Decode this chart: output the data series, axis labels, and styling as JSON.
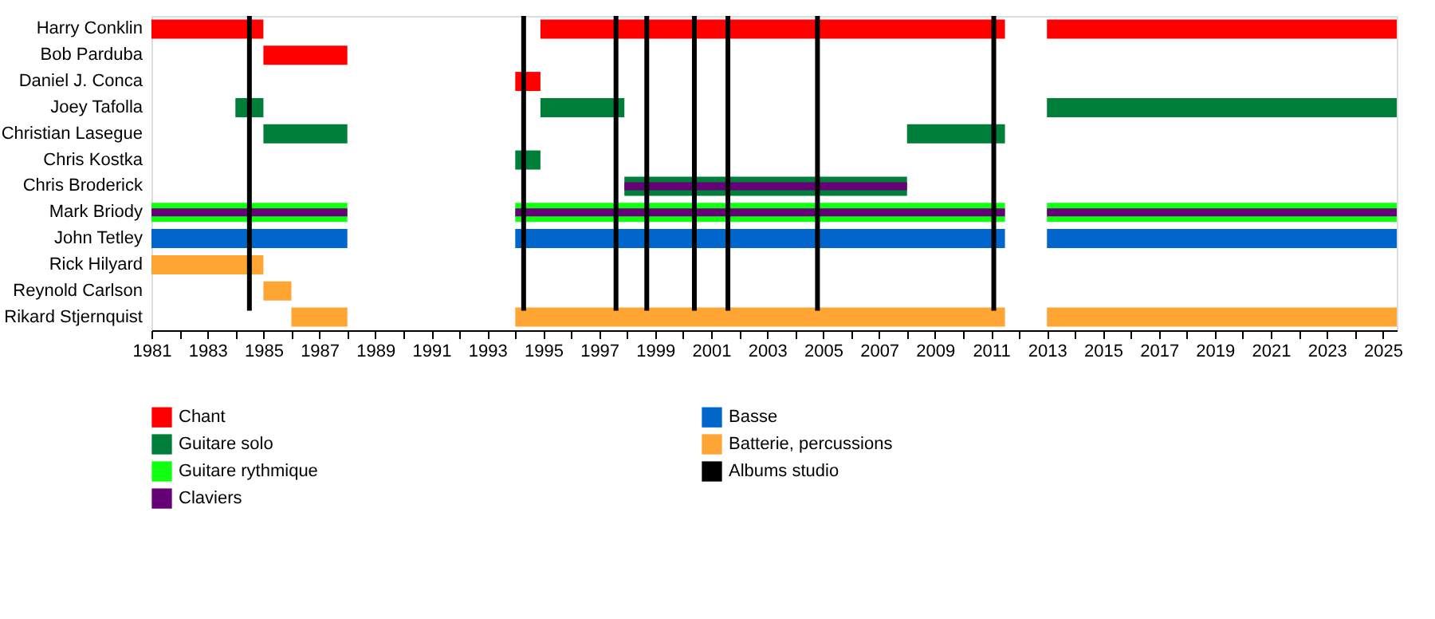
{
  "chart_data": {
    "type": "bar",
    "orientation": "horizontal",
    "categories": [
      "Harry Conklin",
      "Bob Parduba",
      "Daniel J. Conca",
      "Joey Tafolla",
      "Christian Lasegue",
      "Chris Kostka",
      "Chris Broderick",
      "Mark Briody",
      "John Tetley",
      "Rick Hilyard",
      "Reynold Carlson",
      "Rikard Stjernquist"
    ],
    "series": [
      {
        "name": "Chant",
        "color": "#ff0000",
        "base": [
          1981,
          1985,
          null,
          null,
          null,
          null,
          null,
          null,
          null,
          null,
          null,
          null
        ],
        "values": [
          4,
          3,
          null,
          null,
          null,
          null,
          null,
          null,
          null,
          null,
          null,
          null
        ]
      },
      {
        "color": "#ff0000",
        "base": [
          1994.9,
          null,
          1994,
          null,
          null,
          null,
          null,
          null,
          null,
          null,
          null,
          null
        ],
        "values": [
          16.6,
          null,
          0.9,
          null,
          null,
          null,
          null,
          null,
          null,
          null,
          null,
          null
        ]
      },
      {
        "color": "#ff0000",
        "base": [
          2013,
          null,
          null,
          null,
          null,
          null,
          null,
          null,
          null,
          null,
          null,
          null
        ],
        "values": [
          12.5,
          null,
          null,
          null,
          null,
          null,
          null,
          null,
          null,
          null,
          null,
          null
        ]
      },
      {
        "name": "Guitare solo",
        "color": "#007f3a",
        "base": [
          null,
          null,
          null,
          1984,
          1985,
          null,
          null,
          null,
          null,
          null,
          null,
          null
        ],
        "values": [
          null,
          null,
          null,
          1,
          3,
          null,
          null,
          null,
          null,
          null,
          null,
          null
        ]
      },
      {
        "color": "#007f3a",
        "base": [
          null,
          null,
          null,
          1994.9,
          2008,
          1994,
          1997.9,
          null,
          null,
          null,
          null,
          null
        ],
        "values": [
          null,
          null,
          null,
          3,
          3.5,
          0.9,
          10.1,
          null,
          null,
          null,
          null,
          null
        ]
      },
      {
        "color": "#007f3a",
        "base": [
          null,
          null,
          null,
          2013,
          null,
          null,
          null,
          null,
          null,
          null,
          null,
          null
        ],
        "values": [
          null,
          null,
          null,
          12.5,
          null,
          null,
          null,
          null,
          null,
          null,
          null,
          null
        ]
      },
      {
        "name": "Guitare rythmique",
        "color": "#11ff11",
        "base": [
          null,
          null,
          null,
          null,
          null,
          null,
          null,
          1981,
          null,
          null,
          null,
          null
        ],
        "values": [
          null,
          null,
          null,
          null,
          null,
          null,
          null,
          7,
          null,
          null,
          null,
          null
        ]
      },
      {
        "color": "#11ff11",
        "base": [
          null,
          null,
          null,
          null,
          null,
          null,
          null,
          1994,
          null,
          null,
          null,
          null
        ],
        "values": [
          null,
          null,
          null,
          null,
          null,
          null,
          null,
          17.5,
          null,
          null,
          null,
          null
        ]
      },
      {
        "color": "#11ff11",
        "base": [
          null,
          null,
          null,
          null,
          null,
          null,
          null,
          2013,
          null,
          null,
          null,
          null
        ],
        "values": [
          null,
          null,
          null,
          null,
          null,
          null,
          null,
          12.5,
          null,
          null,
          null,
          null
        ]
      },
      {
        "name": "Claviers",
        "color": "#660077",
        "base": [
          null,
          null,
          null,
          null,
          null,
          null,
          1997.9,
          1981,
          null,
          null,
          null,
          null
        ],
        "values": [
          null,
          null,
          null,
          null,
          null,
          null,
          10.1,
          7,
          null,
          null,
          null,
          null
        ]
      },
      {
        "color": "#660077",
        "base": [
          null,
          null,
          null,
          null,
          null,
          null,
          null,
          1994,
          null,
          null,
          null,
          null
        ],
        "values": [
          null,
          null,
          null,
          null,
          null,
          null,
          null,
          17.5,
          null,
          null,
          null,
          null
        ]
      },
      {
        "color": "#660077",
        "base": [
          null,
          null,
          null,
          null,
          null,
          null,
          null,
          2013,
          null,
          null,
          null,
          null
        ],
        "values": [
          null,
          null,
          null,
          null,
          null,
          null,
          null,
          12.5,
          null,
          null,
          null,
          null
        ]
      },
      {
        "name": "Basse",
        "color": "#0066cc",
        "base": [
          null,
          null,
          null,
          null,
          null,
          null,
          null,
          null,
          1981,
          null,
          null,
          null
        ],
        "values": [
          null,
          null,
          null,
          null,
          null,
          null,
          null,
          null,
          7,
          null,
          null,
          null
        ]
      },
      {
        "color": "#0066cc",
        "base": [
          null,
          null,
          null,
          null,
          null,
          null,
          null,
          null,
          1994,
          null,
          null,
          null
        ],
        "values": [
          null,
          null,
          null,
          null,
          null,
          null,
          null,
          null,
          17.5,
          null,
          null,
          null
        ]
      },
      {
        "color": "#0066cc",
        "base": [
          null,
          null,
          null,
          null,
          null,
          null,
          null,
          null,
          2013,
          null,
          null,
          null
        ],
        "values": [
          null,
          null,
          null,
          null,
          null,
          null,
          null,
          null,
          12.5,
          null,
          null,
          null
        ]
      },
      {
        "name": "Batterie, percussions",
        "color": "#ffa533",
        "base": [
          null,
          null,
          null,
          null,
          null,
          null,
          null,
          null,
          null,
          1981,
          1985,
          1986
        ],
        "values": [
          null,
          null,
          null,
          null,
          null,
          null,
          null,
          null,
          null,
          4,
          1,
          2
        ]
      },
      {
        "color": "#ffa533",
        "base": [
          null,
          null,
          null,
          null,
          null,
          null,
          null,
          null,
          null,
          null,
          null,
          1994
        ],
        "values": [
          null,
          null,
          null,
          null,
          null,
          null,
          null,
          null,
          null,
          null,
          null,
          17.5
        ]
      },
      {
        "color": "#ffa533",
        "base": [
          null,
          null,
          null,
          null,
          null,
          null,
          null,
          null,
          null,
          null,
          null,
          2013
        ],
        "values": [
          null,
          null,
          null,
          null,
          null,
          null,
          null,
          null,
          null,
          null,
          null,
          12.5
        ]
      }
    ],
    "ref_lines": [
      {
        "axis": "x",
        "value": 1984.5,
        "label": "Albums studio",
        "color": "#000000"
      },
      {
        "axis": "x",
        "value": 1994.3,
        "color": "#000000"
      },
      {
        "axis": "x",
        "value": 1997.6,
        "color": "#000000"
      },
      {
        "axis": "x",
        "value": 1998.7,
        "color": "#000000"
      },
      {
        "axis": "x",
        "value": 2000.4,
        "color": "#000000"
      },
      {
        "axis": "x",
        "value": 2001.6,
        "color": "#000000"
      },
      {
        "axis": "x",
        "value": 2004.8,
        "color": "#000000"
      },
      {
        "axis": "x",
        "value": 2011.1,
        "color": "#000000"
      }
    ],
    "xlim": [
      1981,
      2025.5
    ],
    "xticks": [
      1981,
      1983,
      1985,
      1987,
      1989,
      1991,
      1993,
      1995,
      1997,
      1999,
      2001,
      2003,
      2005,
      2007,
      2009,
      2011,
      2013,
      2015,
      2017,
      2019,
      2021,
      2023,
      2025
    ],
    "grid": false,
    "legend": "bottom left"
  }
}
